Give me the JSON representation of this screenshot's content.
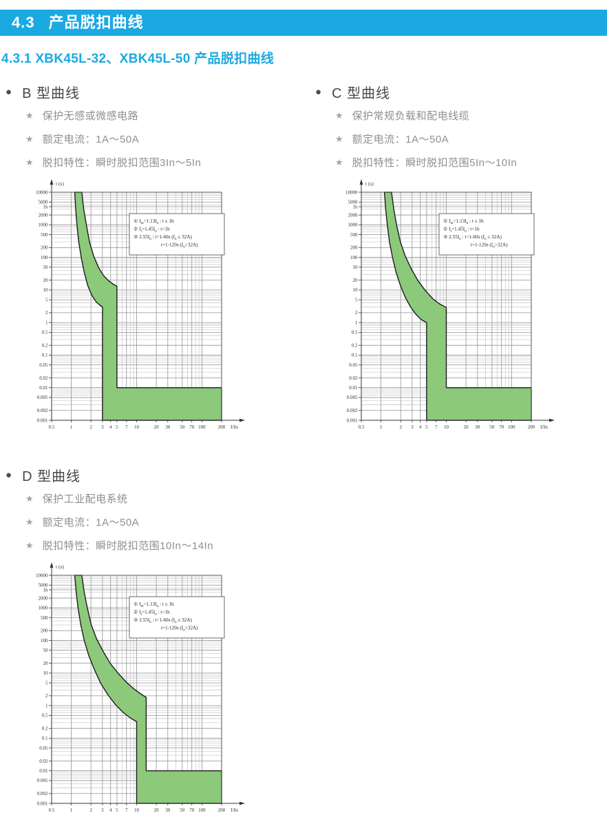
{
  "colors": {
    "accent_blue": "#1BA9E1",
    "curve_green": "#8CC97B",
    "curve_outline": "#1c1c1c",
    "grid_minor": "#b9b9b9",
    "grid_major": "#919191",
    "heading_gray": "#474747",
    "bullet_gray": "#8f8f8f"
  },
  "icons": {
    "dot": "●",
    "star": "★"
  },
  "header": {
    "number": "4.3",
    "title": "产品脱扣曲线",
    "subtitle": "4.3.1  XBK45L-32、XBK45L-50 产品脱扣曲线"
  },
  "sections": [
    {
      "id": "B",
      "title": "B 型曲线",
      "bullets": [
        "保护无感或微感电路",
        "额定电流：1A～50A",
        "脱扣特性：瞬时脱扣范围3In～5In"
      ]
    },
    {
      "id": "C",
      "title": "C 型曲线",
      "bullets": [
        "保护常规负载和配电线缆",
        "额定电流：1A～50A",
        "脱扣特性：瞬时脱扣范围5In～10In"
      ]
    },
    {
      "id": "D",
      "title": "D 型曲线",
      "bullets": [
        "保护工业配电系统",
        "额定电流：1A～50A",
        "脱扣特性：瞬时脱扣范围10In～14In"
      ]
    }
  ],
  "chart_data": [
    {
      "id": "B",
      "type": "area",
      "curve_type": "B",
      "xlabel": "I/In",
      "ylabel": "t (s)",
      "xscale": "log",
      "yscale": "log",
      "grid": "dense log-log",
      "xlim": [
        0.5,
        200
      ],
      "ylim": [
        0.001,
        10000
      ],
      "x_ticks": [
        [
          "0.5",
          0.5
        ],
        [
          "1",
          1
        ],
        [
          "2",
          2
        ],
        [
          "3",
          3
        ],
        [
          "4",
          4
        ],
        [
          "5",
          5
        ],
        [
          "7",
          7
        ],
        [
          "10",
          10
        ],
        [
          "20",
          20
        ],
        [
          "30",
          30
        ],
        [
          "50",
          50
        ],
        [
          "70",
          70
        ],
        [
          "100",
          100
        ],
        [
          "200",
          200
        ]
      ],
      "y_ticks": [
        [
          "10000",
          10000
        ],
        [
          "5000",
          5000
        ],
        [
          "1h",
          3600
        ],
        [
          "2000",
          2000
        ],
        [
          "1000",
          1000
        ],
        [
          "500",
          500
        ],
        [
          "200",
          200
        ],
        [
          "100",
          100
        ],
        [
          "50",
          50
        ],
        [
          "20",
          20
        ],
        [
          "10",
          10
        ],
        [
          "5",
          5
        ],
        [
          "2",
          2
        ],
        [
          "1",
          1
        ],
        [
          "0.5",
          0.5
        ],
        [
          "0.2",
          0.2
        ],
        [
          "0.1",
          0.1
        ],
        [
          "0.05",
          0.05
        ],
        [
          "0.02",
          0.02
        ],
        [
          "0.01",
          0.01
        ],
        [
          "0.005",
          0.005
        ],
        [
          "0.002",
          0.002
        ],
        [
          "0.001",
          0.001
        ]
      ],
      "band": {
        "inst_range": [
          3,
          5
        ],
        "inst_time": 0.01,
        "bottom_t": 0.001,
        "x_end": 200,
        "left_curve": [
          [
            1.13,
            10000
          ],
          [
            1.17,
            3000
          ],
          [
            1.22,
            1000
          ],
          [
            1.3,
            300
          ],
          [
            1.42,
            100
          ],
          [
            1.58,
            35
          ],
          [
            1.78,
            14
          ],
          [
            2.05,
            7
          ],
          [
            2.4,
            4.3
          ],
          [
            2.75,
            3.4
          ],
          [
            3,
            3
          ]
        ],
        "right_curve": [
          [
            1.45,
            10000
          ],
          [
            1.55,
            3000
          ],
          [
            1.7,
            1000
          ],
          [
            1.9,
            300
          ],
          [
            2.2,
            110
          ],
          [
            2.6,
            50
          ],
          [
            3.1,
            28
          ],
          [
            3.8,
            18.5
          ],
          [
            4.4,
            15
          ],
          [
            5,
            13
          ]
        ]
      },
      "annotation": [
        "① I|nt|=1.13I|n| : t ≤ 1h",
        "② I|t|=1.45I|n| : t<1h",
        "③ 2.55I|n| : t=1-60s (I|n| ≤ 32A)",
        "t=1-120s (I|n|>32A)"
      ]
    },
    {
      "id": "C",
      "type": "area",
      "curve_type": "C",
      "xlabel": "I/In",
      "ylabel": "t (s)",
      "xscale": "log",
      "yscale": "log",
      "grid": "dense log-log",
      "xlim": [
        0.5,
        200
      ],
      "ylim": [
        0.001,
        10000
      ],
      "x_ticks": [
        [
          "0.5",
          0.5
        ],
        [
          "1",
          1
        ],
        [
          "2",
          2
        ],
        [
          "3",
          3
        ],
        [
          "4",
          4
        ],
        [
          "5",
          5
        ],
        [
          "7",
          7
        ],
        [
          "10",
          10
        ],
        [
          "20",
          20
        ],
        [
          "30",
          30
        ],
        [
          "50",
          50
        ],
        [
          "70",
          70
        ],
        [
          "100",
          100
        ],
        [
          "200",
          200
        ]
      ],
      "y_ticks": [
        [
          "10000",
          10000
        ],
        [
          "5000",
          5000
        ],
        [
          "1h",
          3600
        ],
        [
          "2000",
          2000
        ],
        [
          "1000",
          1000
        ],
        [
          "500",
          500
        ],
        [
          "200",
          200
        ],
        [
          "100",
          100
        ],
        [
          "50",
          50
        ],
        [
          "20",
          20
        ],
        [
          "10",
          10
        ],
        [
          "5",
          5
        ],
        [
          "2",
          2
        ],
        [
          "1",
          1
        ],
        [
          "0.5",
          0.5
        ],
        [
          "0.2",
          0.2
        ],
        [
          "0.1",
          0.1
        ],
        [
          "0.05",
          0.05
        ],
        [
          "0.02",
          0.02
        ],
        [
          "0.01",
          0.01
        ],
        [
          "0.005",
          0.005
        ],
        [
          "0.002",
          0.002
        ],
        [
          "0.001",
          0.001
        ]
      ],
      "band": {
        "inst_range": [
          5,
          10
        ],
        "inst_time": 0.01,
        "bottom_t": 0.001,
        "x_end": 200,
        "left_curve": [
          [
            1.13,
            10000
          ],
          [
            1.18,
            3000
          ],
          [
            1.25,
            1000
          ],
          [
            1.35,
            300
          ],
          [
            1.5,
            100
          ],
          [
            1.7,
            35
          ],
          [
            2.0,
            13
          ],
          [
            2.4,
            5.5
          ],
          [
            2.9,
            2.8
          ],
          [
            3.5,
            1.7
          ],
          [
            4.2,
            1.2
          ],
          [
            5,
            1.0
          ]
        ],
        "right_curve": [
          [
            1.45,
            10000
          ],
          [
            1.57,
            3000
          ],
          [
            1.73,
            1000
          ],
          [
            1.98,
            300
          ],
          [
            2.35,
            110
          ],
          [
            2.9,
            45
          ],
          [
            3.7,
            19
          ],
          [
            4.8,
            9.5
          ],
          [
            6.3,
            5.2
          ],
          [
            8.1,
            3.6
          ],
          [
            10,
            2.9
          ]
        ]
      },
      "annotation": [
        "① I|nt|=1.13I|n| : t ≤ 1h",
        "② I|t|=1.45I|n| : t<1h",
        "③ 2.55I|n| : t=1-60s (I|n| ≤ 32A)",
        "t=1-120s (I|n|>32A)"
      ]
    },
    {
      "id": "D",
      "type": "area",
      "curve_type": "D",
      "xlabel": "I/In",
      "ylabel": "t (s)",
      "xscale": "log",
      "yscale": "log",
      "grid": "dense log-log",
      "xlim": [
        0.5,
        200
      ],
      "ylim": [
        0.001,
        10000
      ],
      "x_ticks": [
        [
          "0.5",
          0.5
        ],
        [
          "1",
          1
        ],
        [
          "2",
          2
        ],
        [
          "3",
          3
        ],
        [
          "4",
          4
        ],
        [
          "5",
          5
        ],
        [
          "7",
          7
        ],
        [
          "10",
          10
        ],
        [
          "20",
          20
        ],
        [
          "30",
          30
        ],
        [
          "50",
          50
        ],
        [
          "70",
          70
        ],
        [
          "100",
          100
        ],
        [
          "200",
          200
        ]
      ],
      "y_ticks": [
        [
          "10000",
          10000
        ],
        [
          "5000",
          5000
        ],
        [
          "1h",
          3600
        ],
        [
          "2000",
          2000
        ],
        [
          "1000",
          1000
        ],
        [
          "500",
          500
        ],
        [
          "200",
          200
        ],
        [
          "100",
          100
        ],
        [
          "50",
          50
        ],
        [
          "20",
          20
        ],
        [
          "10",
          10
        ],
        [
          "5",
          5
        ],
        [
          "2",
          2
        ],
        [
          "1",
          1
        ],
        [
          "0.5",
          0.5
        ],
        [
          "0.2",
          0.2
        ],
        [
          "0.1",
          0.1
        ],
        [
          "0.05",
          0.05
        ],
        [
          "0.02",
          0.02
        ],
        [
          "0.01",
          0.01
        ],
        [
          "0.005",
          0.005
        ],
        [
          "0.002",
          0.002
        ],
        [
          "0.001",
          0.001
        ]
      ],
      "band": {
        "inst_range": [
          10,
          14
        ],
        "inst_time": 0.01,
        "bottom_t": 0.001,
        "x_end": 200,
        "left_curve": [
          [
            1.13,
            10000
          ],
          [
            1.19,
            3000
          ],
          [
            1.27,
            1000
          ],
          [
            1.4,
            300
          ],
          [
            1.58,
            100
          ],
          [
            1.85,
            35
          ],
          [
            2.25,
            13
          ],
          [
            2.8,
            5
          ],
          [
            3.6,
            2.2
          ],
          [
            4.7,
            1.1
          ],
          [
            6.2,
            0.62
          ],
          [
            8.0,
            0.42
          ],
          [
            10,
            0.32
          ]
        ],
        "right_curve": [
          [
            1.45,
            10000
          ],
          [
            1.58,
            3000
          ],
          [
            1.76,
            1000
          ],
          [
            2.02,
            300
          ],
          [
            2.45,
            110
          ],
          [
            3.1,
            45
          ],
          [
            4.0,
            19
          ],
          [
            5.3,
            9.5
          ],
          [
            7.0,
            5.2
          ],
          [
            9.0,
            3.3
          ],
          [
            11.5,
            2.3
          ],
          [
            14,
            1.8
          ]
        ]
      },
      "annotation": [
        "① I|nt|=1.13I|n| : t ≤ 1h",
        "② I|t|=1.45I|n| : t<1h",
        "③ 2.55I|n| : t=1-60s (I|n| ≤ 32A)",
        "t=1-120s (I|n|>32A)"
      ]
    }
  ]
}
